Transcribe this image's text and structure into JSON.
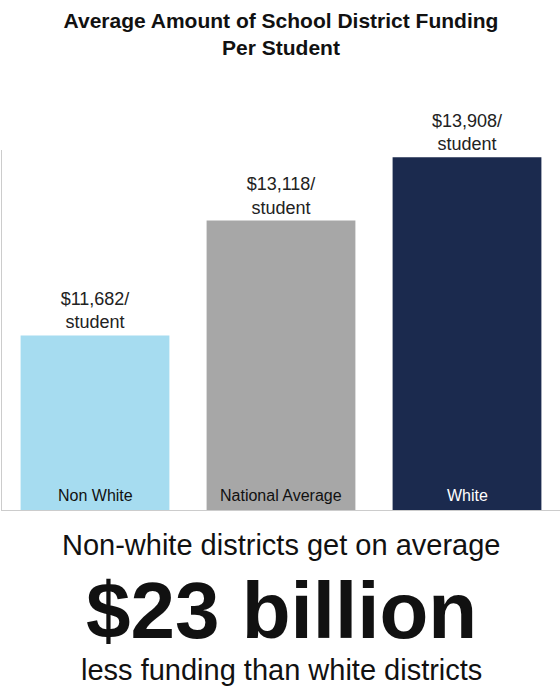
{
  "chart_data": {
    "type": "bar",
    "title": "Average Amount of School District Funding Per Student",
    "categories": [
      "Non White",
      "National Average",
      "White"
    ],
    "values": [
      11682,
      13118,
      13908
    ],
    "value_labels": [
      "$11,682/ student",
      "$13,118/ student",
      "$13,908/ student"
    ],
    "colors": [
      "#a6dcf0",
      "#a7a7a7",
      "#1b2a4e"
    ],
    "ylim": [
      9500,
      14000
    ],
    "yticks": [],
    "grid": false,
    "data_labels": true,
    "tick_labels": false,
    "annotations": [
      "Non-white districts get on average",
      "$23 billion",
      "less funding than white districts"
    ]
  }
}
